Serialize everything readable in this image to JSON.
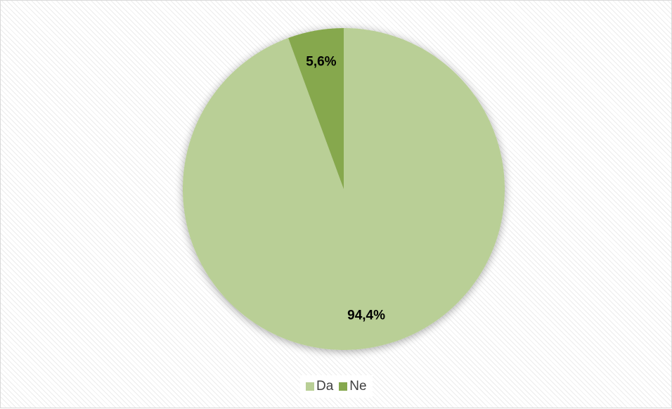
{
  "chart_data": {
    "type": "pie",
    "title": "",
    "categories": [
      "Da",
      "Ne"
    ],
    "values": [
      94.4,
      5.6
    ],
    "value_labels": [
      "94,4%",
      "5,6%"
    ],
    "colors": [
      "#b9cf96",
      "#86a84e"
    ],
    "start": "12 o'clock, clockwise",
    "legend_position": "bottom",
    "legend": [
      {
        "label": "Da",
        "color": "#b9cf96"
      },
      {
        "label": "Ne",
        "color": "#86a84e"
      }
    ]
  }
}
